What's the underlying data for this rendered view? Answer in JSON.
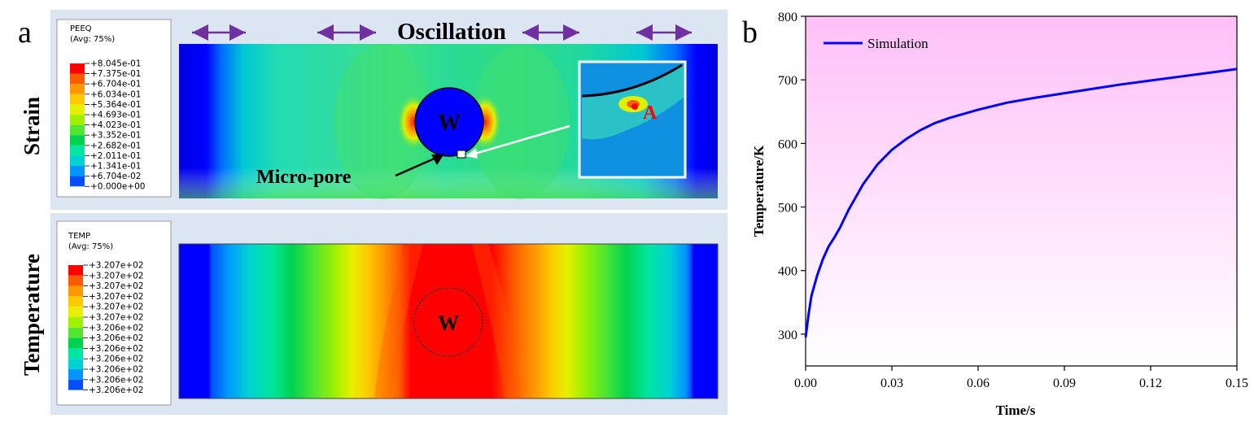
{
  "panel_a": {
    "label": "a",
    "strain": {
      "row_label": "Strain",
      "legend_title": "PEEQ",
      "legend_avg": "(Avg: 75%)",
      "legend_values": [
        "+8.045e-01",
        "+7.375e-01",
        "+6.704e-01",
        "+6.034e-01",
        "+5.364e-01",
        "+4.693e-01",
        "+4.023e-01",
        "+3.352e-01",
        "+2.682e-01",
        "+2.011e-01",
        "+1.341e-01",
        "+6.704e-02",
        "+0.000e+00"
      ],
      "oscillation_label": "Oscillation",
      "particle_label": "W",
      "pore_label": "Micro-pore",
      "point_label": "A"
    },
    "temperature": {
      "row_label": "Temperature",
      "legend_title": "TEMP",
      "legend_avg": "(Avg: 75%)",
      "legend_values": [
        "+3.207e+02",
        "+3.207e+02",
        "+3.207e+02",
        "+3.207e+02",
        "+3.207e+02",
        "+3.207e+02",
        "+3.206e+02",
        "+3.206e+02",
        "+3.206e+02",
        "+3.206e+02",
        "+3.206e+02",
        "+3.206e+02",
        "+3.206e+02"
      ],
      "particle_label": "W"
    },
    "colors": {
      "contour": [
        "#ff0000",
        "#ff5a00",
        "#ff9800",
        "#ffca00",
        "#e6f000",
        "#a0f000",
        "#50e632",
        "#00d250",
        "#00e6a0",
        "#00d2d2",
        "#0096ff",
        "#0050ff",
        "#0000ff"
      ],
      "panel_bg": "#dce6f2",
      "arrow": "#7030a0"
    }
  },
  "panel_b": {
    "label": "b",
    "chart_data": {
      "type": "line",
      "xlabel": "Time/s",
      "ylabel": "Temperature/K",
      "xlim": [
        0,
        0.15
      ],
      "ylim": [
        250,
        800
      ],
      "xticks": [
        "0.00",
        "0.03",
        "0.06",
        "0.09",
        "0.12",
        "0.15"
      ],
      "xtick_values": [
        0,
        0.03,
        0.06,
        0.09,
        0.12,
        0.15
      ],
      "yticks": [
        "300",
        "400",
        "500",
        "600",
        "700",
        "800"
      ],
      "ytick_values": [
        300,
        400,
        500,
        600,
        700,
        800
      ],
      "legend_position": "top-left",
      "series": [
        {
          "name": "Simulation",
          "color": "#0000ff",
          "x": [
            0,
            0.001,
            0.002,
            0.004,
            0.006,
            0.008,
            0.01,
            0.012,
            0.015,
            0.02,
            0.025,
            0.03,
            0.035,
            0.04,
            0.045,
            0.05,
            0.06,
            0.07,
            0.08,
            0.09,
            0.1,
            0.11,
            0.12,
            0.13,
            0.14,
            0.15
          ],
          "y": [
            295,
            330,
            360,
            392,
            418,
            438,
            452,
            468,
            496,
            536,
            567,
            590,
            607,
            621,
            632,
            640,
            653,
            664,
            672,
            679,
            686,
            693,
            699,
            705,
            711,
            717
          ]
        }
      ],
      "background_gradient": [
        "#ffc0f8",
        "#ffffff"
      ]
    }
  }
}
